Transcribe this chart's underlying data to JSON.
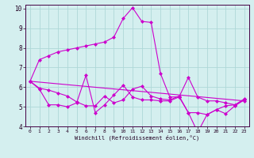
{
  "xlabel": "Windchill (Refroidissement éolien,°C)",
  "background_color": "#d4efef",
  "grid_color": "#aed8d8",
  "line_color": "#cc00cc",
  "xlim": [
    -0.5,
    23.5
  ],
  "ylim": [
    4,
    10.2
  ],
  "xticks": [
    0,
    1,
    2,
    3,
    4,
    5,
    6,
    7,
    8,
    9,
    10,
    11,
    12,
    13,
    14,
    15,
    16,
    17,
    18,
    19,
    20,
    21,
    22,
    23
  ],
  "yticks": [
    4,
    5,
    6,
    7,
    8,
    9,
    10
  ],
  "line1_x": [
    0,
    1,
    2,
    3,
    4,
    5,
    6,
    7,
    8,
    9,
    10,
    11,
    12,
    13,
    14,
    15,
    16,
    17,
    18,
    19,
    20,
    21,
    22,
    23
  ],
  "line1_y": [
    6.3,
    7.4,
    7.6,
    7.8,
    7.9,
    8.0,
    8.1,
    8.2,
    8.3,
    8.55,
    9.5,
    10.05,
    9.35,
    9.3,
    6.7,
    5.5,
    5.5,
    6.5,
    5.5,
    5.3,
    5.3,
    5.2,
    5.1,
    5.4
  ],
  "line2_x": [
    0,
    1,
    2,
    3,
    4,
    5,
    6,
    7,
    8,
    9,
    10,
    11,
    12,
    13,
    14,
    15,
    16,
    17,
    18,
    19,
    20,
    21,
    22,
    23
  ],
  "line2_y": [
    6.3,
    5.9,
    5.1,
    5.1,
    5.0,
    5.2,
    6.6,
    4.7,
    5.1,
    5.6,
    6.1,
    5.5,
    5.35,
    5.35,
    5.3,
    5.3,
    5.5,
    4.7,
    3.7,
    4.6,
    4.85,
    4.65,
    5.05,
    5.35
  ],
  "line3_x": [
    0,
    1,
    2,
    3,
    4,
    5,
    6,
    7,
    8,
    9,
    10,
    11,
    12,
    13,
    14,
    15,
    16,
    17,
    18,
    19,
    20,
    21,
    22,
    23
  ],
  "line3_y": [
    6.3,
    5.95,
    5.85,
    5.7,
    5.55,
    5.25,
    5.05,
    5.05,
    5.55,
    5.2,
    5.35,
    5.9,
    6.05,
    5.55,
    5.4,
    5.35,
    5.55,
    4.7,
    4.7,
    4.6,
    4.85,
    5.05,
    5.1,
    5.35
  ],
  "line4_x": [
    0,
    23
  ],
  "line4_y": [
    6.3,
    5.3
  ]
}
